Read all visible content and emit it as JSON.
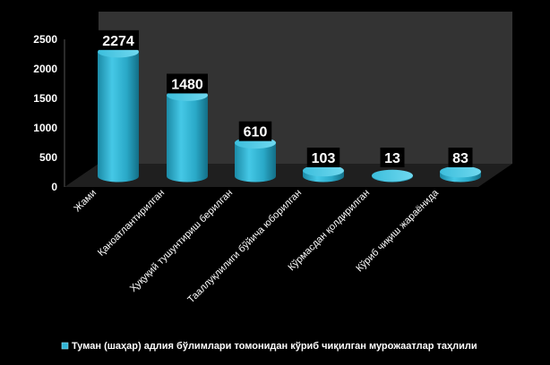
{
  "chart_data": {
    "type": "bar",
    "categories": [
      "Жами",
      "Қаноатлантирилган",
      "Ҳуқуқий тушунтириш берилган",
      "Тааллуқлилиги бўйича юборилган",
      "Кўрмасдан қолдирилган",
      "Кўриб чиқиш жараёнида"
    ],
    "series": [
      {
        "name": "Туман (шаҳар) адлия бўлимлари томонидан кўриб чиқилган мурожаатлар таҳлили",
        "values": [
          2274,
          1480,
          610,
          103,
          13,
          83
        ]
      }
    ],
    "yticks": [
      "0",
      "500",
      "1000",
      "1500",
      "2000",
      "2500"
    ],
    "ylim": [
      0,
      2500
    ],
    "legend_position": "bottom",
    "bar_color": "#31b5d5",
    "wall_color": "#333333",
    "floor_color": "#1f1f1f"
  }
}
